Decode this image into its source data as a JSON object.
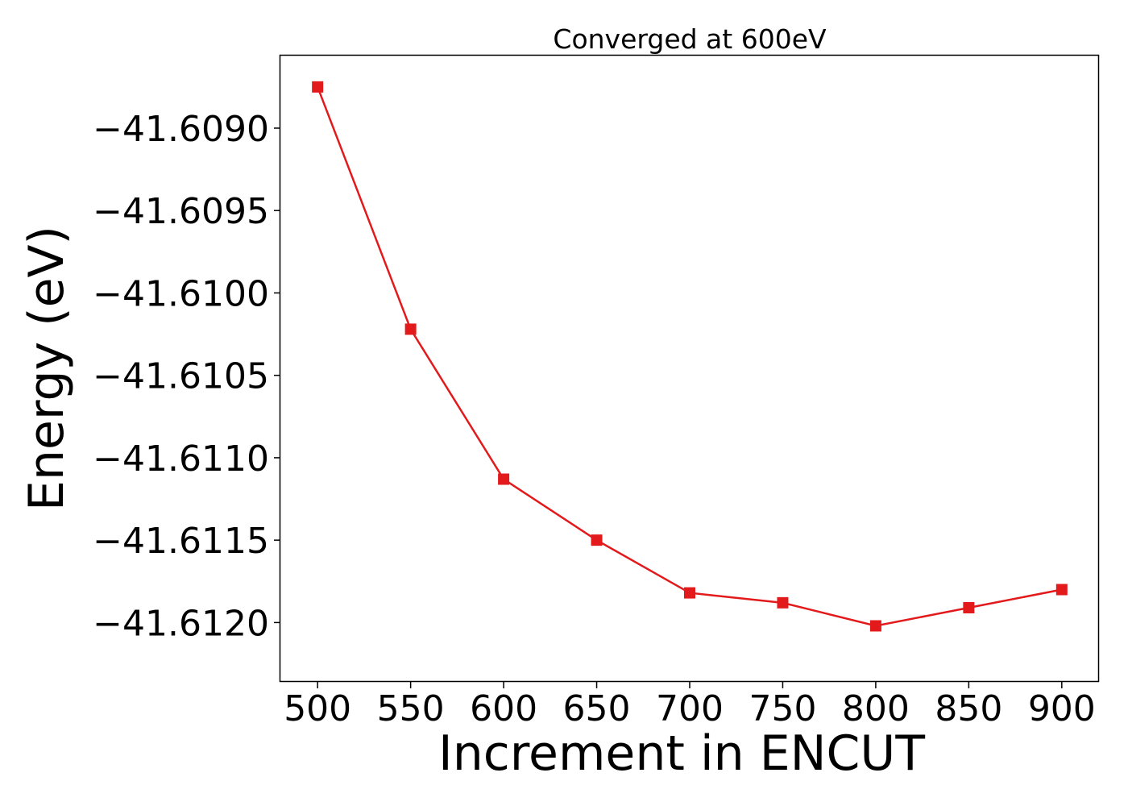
{
  "chart_data": {
    "type": "line",
    "title": "Converged at 600eV",
    "xlabel": "Increment in ENCUT",
    "ylabel": "Energy (eV)",
    "x": [
      500,
      550,
      600,
      650,
      700,
      750,
      800,
      850,
      900
    ],
    "x_ticks": [
      500,
      550,
      600,
      650,
      700,
      750,
      800,
      850,
      900
    ],
    "x_tick_labels": [
      "500",
      "550",
      "600",
      "650",
      "700",
      "750",
      "800",
      "850",
      "900"
    ],
    "y_ticks": [
      -41.609,
      -41.6095,
      -41.61,
      -41.6105,
      -41.611,
      -41.6115,
      -41.612
    ],
    "y_tick_labels": [
      "−41.6090",
      "−41.6095",
      "−41.6100",
      "−41.6105",
      "−41.6110",
      "−41.6115",
      "−41.6120"
    ],
    "xlim": [
      480,
      920
    ],
    "ylim": [
      -41.61236,
      -41.60856
    ],
    "grid": false,
    "series": [
      {
        "values": [
          -41.60875,
          -41.61022,
          -41.61113,
          -41.6115,
          -41.61182,
          -41.61188,
          -41.61202,
          -41.61191,
          -41.6118
        ],
        "color": "#e31a1c",
        "marker": "square"
      }
    ]
  }
}
